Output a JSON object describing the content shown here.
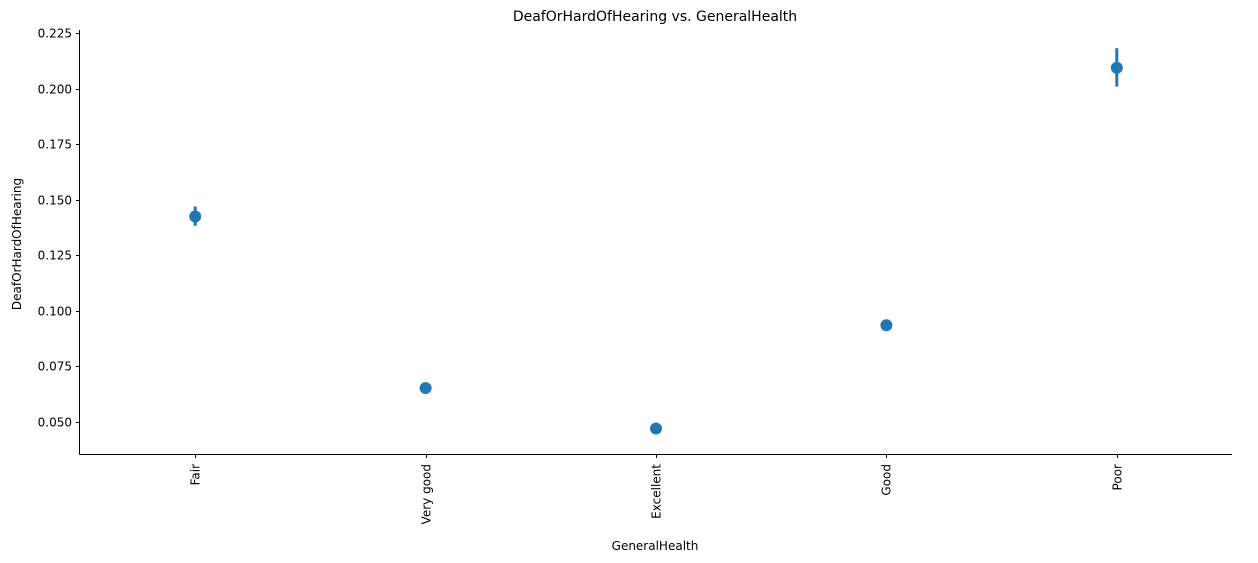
{
  "chart_data": {
    "type": "scatter",
    "subtype": "pointplot-with-error-bars",
    "title": "DeafOrHardOfHearing vs. GeneralHealth",
    "xlabel": "GeneralHealth",
    "ylabel": "DeafOrHardOfHearing",
    "categories": [
      "Fair",
      "Very good",
      "Excellent",
      "Good",
      "Poor"
    ],
    "series": [
      {
        "values": [
          0.1425,
          0.0652,
          0.047,
          0.0935,
          0.2095
        ],
        "ci_low": [
          0.1383,
          0.0632,
          0.0455,
          0.0915,
          0.201
        ],
        "ci_high": [
          0.147,
          0.0672,
          0.0488,
          0.0955,
          0.2183
        ],
        "color": "#1f77b4"
      }
    ],
    "ylim": [
      0.0355,
      0.2265
    ],
    "yticks": [
      0.05,
      0.075,
      0.1,
      0.125,
      0.15,
      0.175,
      0.2,
      0.225
    ],
    "ytick_labels": [
      "0.050",
      "0.075",
      "0.100",
      "0.125",
      "0.150",
      "0.175",
      "0.200",
      "0.225"
    ],
    "xtick_rotation": "vertical",
    "grid": false,
    "legend": "none"
  }
}
